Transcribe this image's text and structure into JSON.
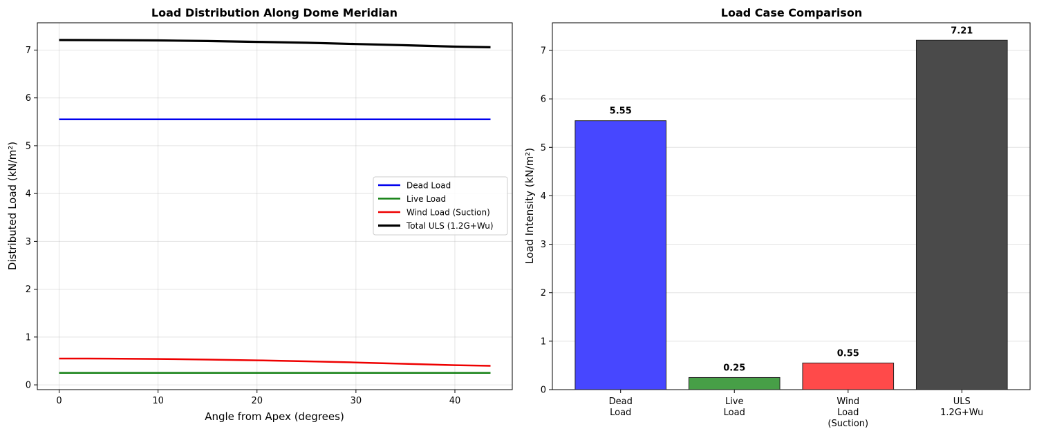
{
  "chart_data": [
    {
      "type": "line",
      "title": "Load Distribution Along Dome Meridian",
      "xlabel": "Angle from Apex (degrees)",
      "ylabel": "Distributed Load (kN/m²)",
      "xlim": [
        -2.2,
        45.8
      ],
      "ylim": [
        -0.1,
        7.57
      ],
      "xticks": [
        0,
        10,
        20,
        30,
        40
      ],
      "yticks": [
        0,
        1,
        2,
        3,
        4,
        5,
        6,
        7
      ],
      "grid": true,
      "legend_position": "center-right",
      "series": [
        {
          "name": "Dead Load",
          "color": "#0000ee",
          "width": 2.5,
          "x": [
            0,
            43.6
          ],
          "y": [
            5.55,
            5.55
          ]
        },
        {
          "name": "Live Load",
          "color": "#138013",
          "width": 2.5,
          "x": [
            0,
            43.6
          ],
          "y": [
            0.25,
            0.25
          ]
        },
        {
          "name": "Wind Load (Suction)",
          "color": "#ee0000",
          "width": 2.5,
          "x": [
            0,
            5,
            10,
            15,
            20,
            25,
            30,
            35,
            40,
            43.6
          ],
          "y": [
            0.55,
            0.548,
            0.541,
            0.529,
            0.512,
            0.492,
            0.467,
            0.44,
            0.411,
            0.398
          ]
        },
        {
          "name": "Total ULS (1.2G+Wu)",
          "color": "#000000",
          "width": 3.2,
          "x": [
            0,
            5,
            10,
            15,
            20,
            25,
            30,
            35,
            40,
            43.6
          ],
          "y": [
            7.21,
            7.208,
            7.201,
            7.189,
            7.172,
            7.152,
            7.127,
            7.1,
            7.071,
            7.058
          ]
        }
      ]
    },
    {
      "type": "bar",
      "title": "Load Case Comparison",
      "ylabel": "Load Intensity (kN/m²)",
      "ylim": [
        0,
        7.57
      ],
      "yticks": [
        0,
        1,
        2,
        3,
        4,
        5,
        6,
        7
      ],
      "grid": true,
      "categories": [
        [
          "Dead",
          "Load"
        ],
        [
          "Live",
          "Load"
        ],
        [
          "Wind",
          "Load",
          "(Suction)"
        ],
        [
          "ULS",
          "1.2G+Wu"
        ]
      ],
      "values": [
        5.55,
        0.25,
        0.55,
        7.21
      ],
      "value_labels": [
        "5.55",
        "0.25",
        "0.55",
        "7.21"
      ],
      "colors": [
        "#4747ff",
        "#479f47",
        "#ff4a4a",
        "#4a4a4a"
      ]
    }
  ]
}
